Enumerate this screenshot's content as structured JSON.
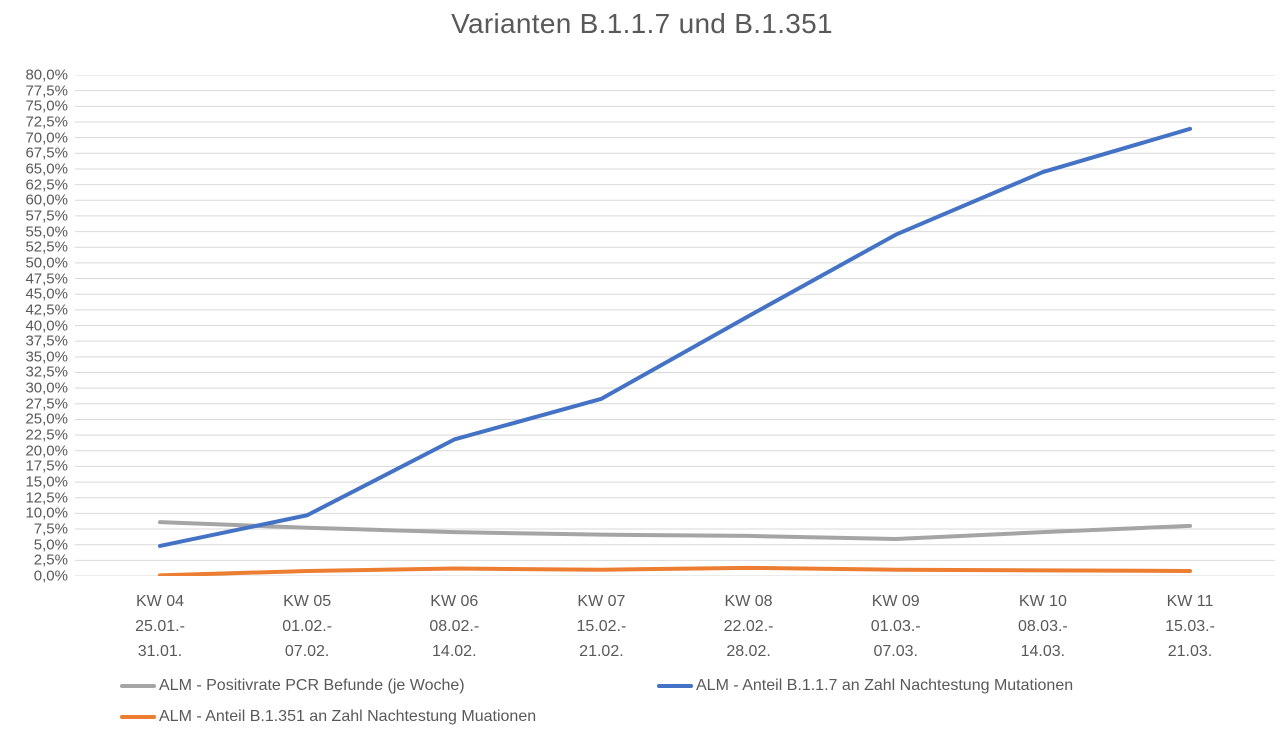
{
  "chart_data": {
    "type": "line",
    "title": "Varianten B.1.1.7 und B.1.351",
    "grid": true,
    "legend_position": "bottom",
    "ylim": [
      0,
      80
    ],
    "ytick_step": 2.5,
    "yticks_top_down": [
      "80,0%",
      "77,5%",
      "75,0%",
      "72,5%",
      "70,0%",
      "67,5%",
      "65,0%",
      "62,5%",
      "60,0%",
      "57,5%",
      "55,0%",
      "52,5%",
      "50,0%",
      "47,5%",
      "45,0%",
      "42,5%",
      "40,0%",
      "37,5%",
      "35,0%",
      "32,5%",
      "30,0%",
      "27,5%",
      "25,0%",
      "22,5%",
      "20,0%",
      "17,5%",
      "15,0%",
      "12,5%",
      "10,0%",
      "7,5%",
      "5,0%",
      "2,5%",
      "0,0%"
    ],
    "categories": [
      {
        "week": "KW 04",
        "range_start": "25.01.-",
        "range_end": "31.01."
      },
      {
        "week": "KW 05",
        "range_start": "01.02.-",
        "range_end": "07.02."
      },
      {
        "week": "KW 06",
        "range_start": "08.02.-",
        "range_end": "14.02."
      },
      {
        "week": "KW 07",
        "range_start": "15.02.-",
        "range_end": "21.02."
      },
      {
        "week": "KW 08",
        "range_start": "22.02.-",
        "range_end": "28.02."
      },
      {
        "week": "KW 09",
        "range_start": "01.03.-",
        "range_end": "07.03."
      },
      {
        "week": "KW 10",
        "range_start": "08.03.-",
        "range_end": "14.03."
      },
      {
        "week": "KW 11",
        "range_start": "15.03.-",
        "range_end": "21.03."
      }
    ],
    "series": [
      {
        "key": "positivrate-pcr",
        "name": "ALM - Positivrate PCR Befunde (je Woche)",
        "color": "#a5a5a5",
        "values": [
          8.6,
          7.7,
          7.0,
          6.6,
          6.4,
          5.9,
          7.0,
          8.0
        ]
      },
      {
        "key": "anteil-b117",
        "name": "ALM - Anteil B.1.1.7 an Zahl Nachtestung Mutationen",
        "color": "#4472c4",
        "values": [
          4.8,
          9.7,
          21.8,
          28.3,
          41.5,
          54.5,
          64.5,
          71.4
        ]
      },
      {
        "key": "anteil-b1351",
        "name": "ALM - Anteil B.1.351 an Zahl Nachtestung Muationen",
        "color": "#ed7d31",
        "values": [
          0.1,
          0.8,
          1.2,
          1.0,
          1.3,
          1.0,
          0.9,
          0.8
        ]
      }
    ]
  },
  "colors": {
    "text": "#595959",
    "gridline": "#d9d9d9",
    "background": "#ffffff"
  }
}
